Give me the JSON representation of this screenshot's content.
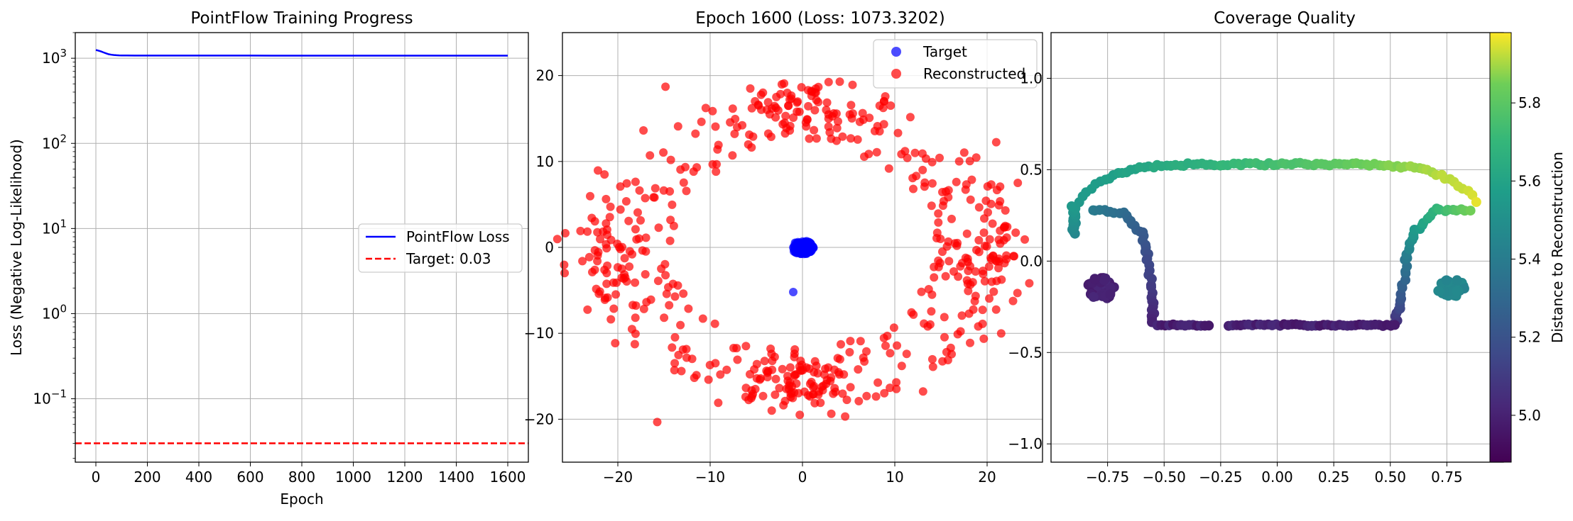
{
  "chart_data": [
    {
      "type": "line",
      "title": "PointFlow Training Progress",
      "xlabel": "Epoch",
      "ylabel": "Loss (Negative Log-Likelihood)",
      "yscale": "log",
      "xlim": [
        -80,
        1680
      ],
      "ylim": [
        0.018,
        2000
      ],
      "x_ticks": [
        0,
        200,
        400,
        600,
        800,
        1000,
        1200,
        1400,
        1600
      ],
      "y_ticks": [
        {
          "value": 0.1,
          "base": "10",
          "exp": "−1"
        },
        {
          "value": 1,
          "base": "10",
          "exp": "0"
        },
        {
          "value": 10,
          "base": "10",
          "exp": "1"
        },
        {
          "value": 100,
          "base": "10",
          "exp": "2"
        },
        {
          "value": 1000,
          "base": "10",
          "exp": "3"
        }
      ],
      "grid": true,
      "legend_position": "center-right",
      "series": [
        {
          "name": "PointFlow Loss",
          "color": "#0000ff",
          "style": "solid",
          "x": [
            0,
            10,
            20,
            30,
            40,
            50,
            60,
            70,
            80,
            90,
            100,
            120,
            150,
            200,
            300,
            400,
            600,
            800,
            1000,
            1200,
            1400,
            1600
          ],
          "y": [
            1250,
            1230,
            1200,
            1170,
            1140,
            1115,
            1100,
            1092,
            1085,
            1080,
            1078,
            1076,
            1075,
            1074.5,
            1074,
            1073.8,
            1073.6,
            1073.5,
            1073.4,
            1073.4,
            1073.35,
            1073.32
          ]
        },
        {
          "name": "Target: 0.03",
          "color": "#ff0000",
          "style": "dashed",
          "y_const": 0.03
        }
      ]
    },
    {
      "type": "scatter",
      "title": "Epoch 1600 (Loss: 1073.3202)",
      "xlim": [
        -26,
        26
      ],
      "ylim": [
        -25,
        25
      ],
      "x_ticks": [
        -20,
        -10,
        0,
        10,
        20
      ],
      "y_ticks": [
        -20,
        -10,
        0,
        10,
        20
      ],
      "tick_labels_x": [
        "−20",
        "−10",
        "0",
        "10",
        "20"
      ],
      "tick_labels_y": [
        "−20",
        "−10",
        "0",
        "10",
        "20"
      ],
      "grid": true,
      "legend_position": "top-right",
      "series": [
        {
          "name": "Target",
          "color": "#0000ff",
          "distribution": "ellipse",
          "center": [
            0,
            0
          ],
          "radius": [
            1.2,
            0.8
          ],
          "count": 120,
          "outlier": [
            -1.0,
            -5.2
          ]
        },
        {
          "name": "Reconstructed",
          "color": "#ff0000",
          "distribution": "ring",
          "center": [
            0,
            0
          ],
          "radius_range": [
            15,
            24
          ],
          "count": 560,
          "clusters": [
            [
              -20,
              0
            ],
            [
              20,
              0
            ],
            [
              0,
              16
            ],
            [
              0,
              -16
            ]
          ]
        }
      ]
    },
    {
      "type": "scatter",
      "title": "Coverage Quality",
      "xlim": [
        -1.0,
        1.0
      ],
      "ylim": [
        -1.1,
        1.25
      ],
      "x_ticks": [
        -0.75,
        -0.5,
        -0.25,
        0.0,
        0.25,
        0.5,
        0.75
      ],
      "y_ticks": [
        -1.0,
        -0.5,
        0.0,
        0.5,
        1.0
      ],
      "tick_labels_x": [
        "−0.75",
        "−0.50",
        "−0.25",
        "0.00",
        "0.25",
        "0.50",
        "0.75"
      ],
      "tick_labels_y": [
        "−1.0",
        "−0.5",
        "0.0",
        "0.5",
        "1.0"
      ],
      "grid": true,
      "colormap": "viridis",
      "colorbar": {
        "label": "Distance to Reconstruction",
        "range": [
          4.88,
          5.98
        ],
        "ticks": [
          5.0,
          5.2,
          5.4,
          5.6,
          5.8
        ],
        "tick_labels": [
          "5.0",
          "5.2",
          "5.4",
          "5.6",
          "5.8"
        ]
      },
      "shape": {
        "top_arc": {
          "x_range": [
            -0.88,
            0.88
          ],
          "y_peak": 0.53,
          "y_ends": 0.3
        },
        "left_side": {
          "x": -0.9,
          "y_range": [
            0.15,
            0.3
          ]
        },
        "left_hook": {
          "points": [
            [
              -0.82,
              0.28
            ],
            [
              -0.68,
              0.26
            ],
            [
              -0.6,
              0.15
            ],
            [
              -0.57,
              0.0
            ],
            [
              -0.55,
              -0.2
            ],
            [
              -0.55,
              -0.34
            ]
          ]
        },
        "bottom_line": {
          "x_range": [
            -0.53,
            0.52
          ],
          "y": -0.35
        },
        "right_hook": {
          "points": [
            [
              0.52,
              -0.34
            ],
            [
              0.55,
              -0.2
            ],
            [
              0.57,
              0.0
            ],
            [
              0.6,
              0.15
            ],
            [
              0.7,
              0.28
            ],
            [
              0.85,
              0.28
            ]
          ]
        },
        "left_blob": {
          "center": [
            -0.78,
            -0.15
          ],
          "radius": [
            0.06,
            0.06
          ]
        },
        "right_blob": {
          "center": [
            0.77,
            -0.15
          ],
          "radius": [
            0.06,
            0.05
          ]
        }
      }
    }
  ]
}
